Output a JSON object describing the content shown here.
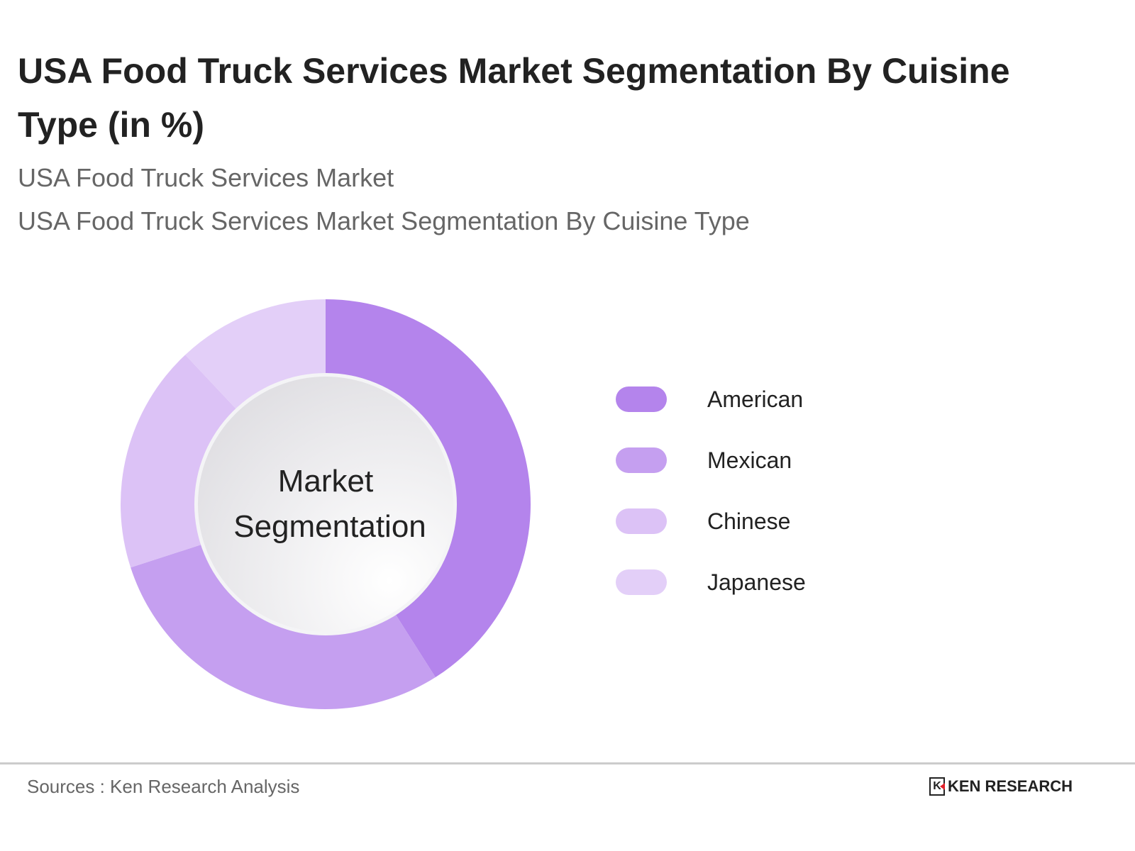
{
  "title": "USA Food Truck Services Market Segmentation By Cuisine Type (in %)",
  "subtitle1": "USA Food Truck Services Market",
  "subtitle2": "USA Food Truck Services Market Segmentation By Cuisine Type",
  "source": "Sources : Ken Research Analysis",
  "logo_text": "KEN RESEARCH",
  "chart_data": {
    "type": "pie",
    "variant": "donut",
    "center_label": [
      "Market",
      "Segmentation"
    ],
    "categories": [
      "American",
      "Mexican",
      "Chinese",
      "Japanese"
    ],
    "values": [
      41,
      29,
      18,
      12
    ],
    "colors": [
      "#b484ec",
      "#c59ff0",
      "#dcc2f6",
      "#e3cff8"
    ],
    "legend_position": "right"
  }
}
